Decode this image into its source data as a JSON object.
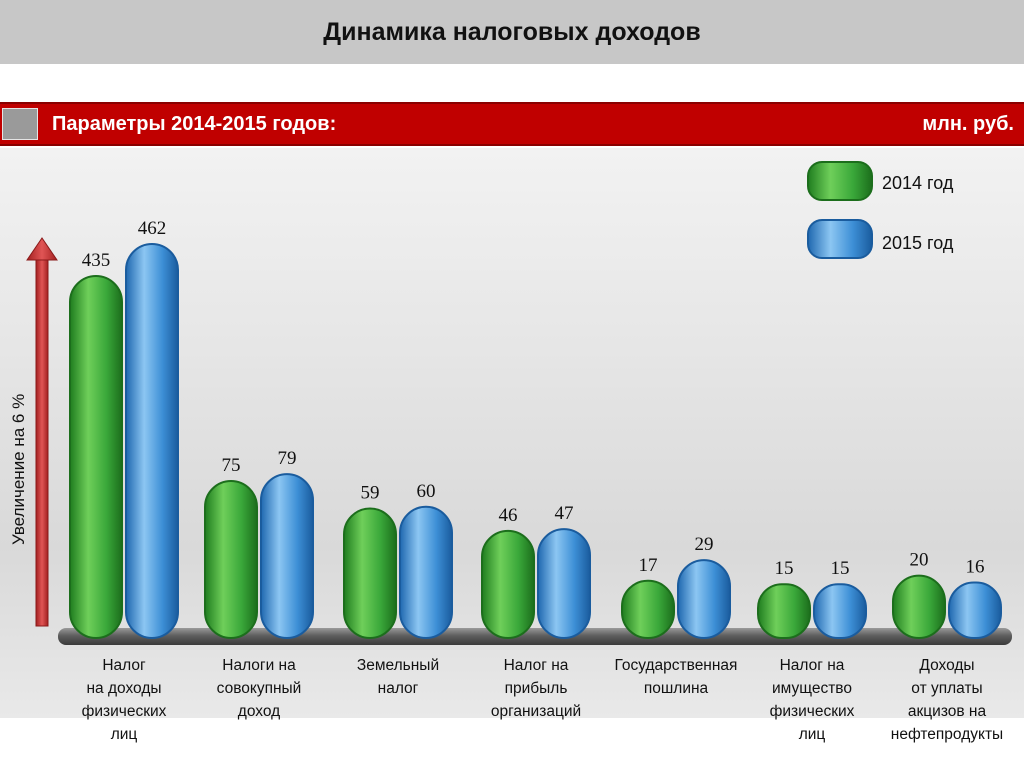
{
  "header": {
    "title": "Динамика налоговых доходов",
    "params": "Параметры 2014-2015 годов:",
    "units": "млн. руб."
  },
  "colors": {
    "series_2014": "#3aa83a",
    "series_2015": "#3d8fd6",
    "red_bar": "#c00000",
    "arrow": "#c03030"
  },
  "annotation": "Увеличение на  6 %",
  "chart_data": {
    "type": "bar",
    "title": "Динамика налоговых доходов",
    "ylabel": "",
    "categories": [
      [
        "Налог",
        "на доходы",
        "физических",
        "лиц"
      ],
      [
        "Налоги на",
        "совокупный",
        "доход"
      ],
      [
        "Земельный",
        "налог"
      ],
      [
        "Налог на",
        "прибыль",
        "организаций"
      ],
      [
        "Государственная",
        "пошлина"
      ],
      [
        "Налог на",
        "имущество",
        "физических",
        "лиц"
      ],
      [
        "Доходы",
        "от уплаты",
        "акцизов на",
        "нефтепродукты"
      ]
    ],
    "series": [
      {
        "name": "2014 год",
        "values": [
          435,
          75,
          59,
          46,
          17,
          15,
          20
        ]
      },
      {
        "name": "2015 год",
        "values": [
          462,
          79,
          60,
          47,
          29,
          15,
          16
        ]
      }
    ],
    "legend_position": "top-right",
    "grid": false
  }
}
